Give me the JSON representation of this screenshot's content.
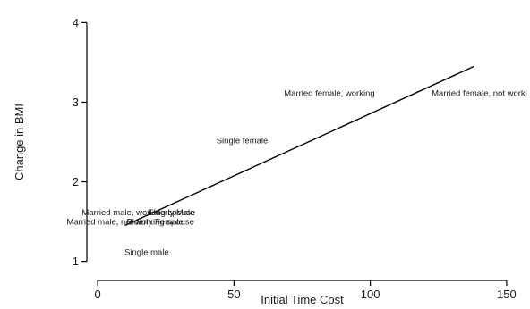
{
  "chart_data": {
    "type": "scatter",
    "title": "",
    "xlabel": "Initial Time Cost",
    "ylabel": "Change in BMI",
    "xlim": [
      -2,
      152
    ],
    "ylim": [
      0.85,
      4.15
    ],
    "x_ticks": [
      0,
      50,
      100,
      150
    ],
    "y_ticks": [
      1,
      2,
      3,
      4
    ],
    "grid": false,
    "legend": "none",
    "points": [
      {
        "label": "Married female, working",
        "x": 85,
        "y": 3.12
      },
      {
        "label": "Married female, not worki",
        "x": 140,
        "y": 3.12
      },
      {
        "label": "Single female",
        "x": 53,
        "y": 2.52
      },
      {
        "label": "Married male, working spouse",
        "x": 15,
        "y": 1.62
      },
      {
        "label": "Elderly Male",
        "x": 27,
        "y": 1.62
      },
      {
        "label": "Married male, not working spouse",
        "x": 12,
        "y": 1.5
      },
      {
        "label": "Elderly Female",
        "x": 21,
        "y": 1.5
      },
      {
        "label": "Single male",
        "x": 18,
        "y": 1.12
      }
    ],
    "fit_line": {
      "x": [
        10,
        138
      ],
      "y": [
        1.45,
        3.45
      ]
    }
  }
}
